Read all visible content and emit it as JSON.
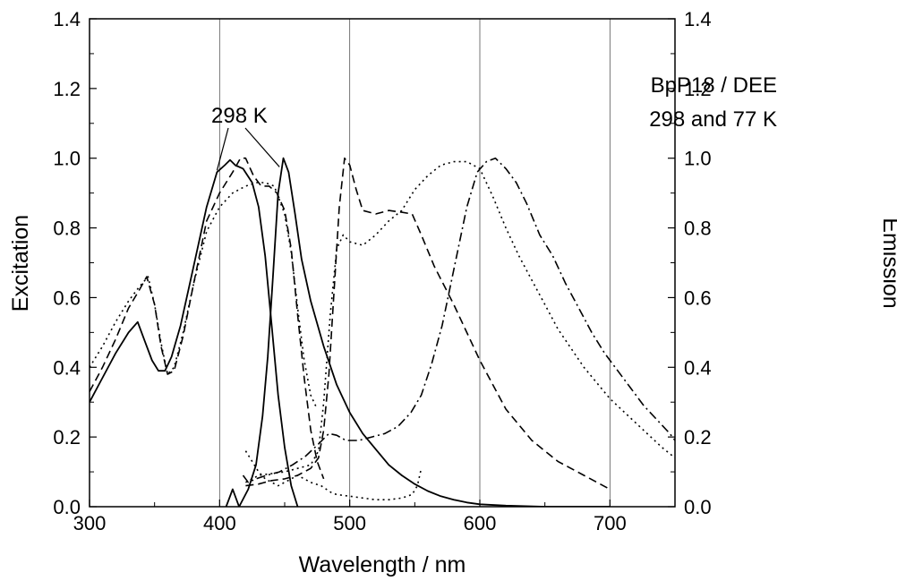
{
  "chart_data": {
    "type": "line",
    "xlabel": "Wavelength / nm",
    "ylabel_left": "Excitation",
    "ylabel_right": "Emission",
    "xlim": [
      300,
      750
    ],
    "ylim": [
      0.0,
      1.4
    ],
    "x_ticks": [
      "300",
      "400",
      "500",
      "600",
      "700"
    ],
    "y_ticks": [
      "0.0",
      "0.2",
      "0.4",
      "0.6",
      "0.8",
      "1.0",
      "1.2",
      "1.4"
    ],
    "grid": "vertical lines at 400, 500, 600, 700",
    "annotations": {
      "legend_line1": "BpP18 / DEE",
      "legend_line2": "298 and 77 K",
      "label_298": "298 K"
    },
    "series": [
      {
        "style": "solid",
        "points": [
          [
            300,
            0.3
          ],
          [
            310,
            0.37
          ],
          [
            320,
            0.44
          ],
          [
            330,
            0.5
          ],
          [
            337,
            0.53
          ],
          [
            342,
            0.48
          ],
          [
            348,
            0.42
          ],
          [
            353,
            0.39
          ],
          [
            358,
            0.39
          ],
          [
            363,
            0.43
          ],
          [
            370,
            0.52
          ],
          [
            380,
            0.69
          ],
          [
            390,
            0.86
          ],
          [
            398,
            0.96
          ],
          [
            404,
            0.98
          ],
          [
            408,
            0.995
          ],
          [
            412,
            0.98
          ],
          [
            418,
            0.97
          ],
          [
            425,
            0.93
          ],
          [
            430,
            0.86
          ],
          [
            435,
            0.72
          ],
          [
            440,
            0.52
          ],
          [
            445,
            0.32
          ],
          [
            450,
            0.17
          ],
          [
            455,
            0.06
          ],
          [
            460,
            0.0
          ]
        ]
      },
      {
        "style": "solid",
        "points": [
          [
            405,
            0.0
          ],
          [
            410,
            0.05
          ],
          [
            415,
            0.0
          ],
          [
            422,
            0.05
          ],
          [
            428,
            0.12
          ],
          [
            433,
            0.26
          ],
          [
            437,
            0.43
          ],
          [
            441,
            0.66
          ],
          [
            445,
            0.9
          ],
          [
            449,
            1.0
          ],
          [
            453,
            0.96
          ],
          [
            458,
            0.84
          ],
          [
            463,
            0.71
          ],
          [
            470,
            0.59
          ],
          [
            480,
            0.46
          ],
          [
            490,
            0.35
          ],
          [
            500,
            0.27
          ],
          [
            510,
            0.21
          ],
          [
            520,
            0.165
          ],
          [
            530,
            0.12
          ],
          [
            540,
            0.09
          ],
          [
            550,
            0.065
          ],
          [
            560,
            0.045
          ],
          [
            570,
            0.03
          ],
          [
            580,
            0.02
          ],
          [
            590,
            0.012
          ],
          [
            600,
            0.007
          ],
          [
            620,
            0.003
          ],
          [
            650,
            0.0
          ],
          [
            700,
            0.0
          ]
        ]
      },
      {
        "style": "dashed",
        "points": [
          [
            300,
            0.33
          ],
          [
            310,
            0.4
          ],
          [
            320,
            0.48
          ],
          [
            330,
            0.57
          ],
          [
            338,
            0.62
          ],
          [
            344,
            0.66
          ],
          [
            350,
            0.58
          ],
          [
            355,
            0.46
          ],
          [
            360,
            0.38
          ],
          [
            365,
            0.39
          ],
          [
            372,
            0.49
          ],
          [
            380,
            0.64
          ],
          [
            390,
            0.82
          ],
          [
            400,
            0.9
          ],
          [
            410,
            0.96
          ],
          [
            416,
            1.0
          ],
          [
            420,
            1.0
          ],
          [
            426,
            0.95
          ],
          [
            432,
            0.92
          ],
          [
            438,
            0.92
          ],
          [
            444,
            0.9
          ],
          [
            450,
            0.85
          ],
          [
            455,
            0.74
          ],
          [
            460,
            0.55
          ],
          [
            465,
            0.37
          ],
          [
            470,
            0.22
          ],
          [
            475,
            0.13
          ],
          [
            480,
            0.08
          ]
        ]
      },
      {
        "style": "dashed",
        "points": [
          [
            420,
            0.06
          ],
          [
            430,
            0.065
          ],
          [
            440,
            0.075
          ],
          [
            450,
            0.08
          ],
          [
            460,
            0.09
          ],
          [
            470,
            0.11
          ],
          [
            476,
            0.14
          ],
          [
            480,
            0.22
          ],
          [
            484,
            0.38
          ],
          [
            488,
            0.62
          ],
          [
            492,
            0.86
          ],
          [
            496,
            1.0
          ],
          [
            500,
            0.98
          ],
          [
            505,
            0.91
          ],
          [
            510,
            0.85
          ],
          [
            520,
            0.84
          ],
          [
            530,
            0.85
          ],
          [
            540,
            0.845
          ],
          [
            548,
            0.84
          ],
          [
            555,
            0.78
          ],
          [
            565,
            0.69
          ],
          [
            580,
            0.58
          ],
          [
            600,
            0.42
          ],
          [
            620,
            0.28
          ],
          [
            640,
            0.19
          ],
          [
            660,
            0.13
          ],
          [
            680,
            0.09
          ],
          [
            700,
            0.05
          ]
        ]
      },
      {
        "style": "dotted",
        "points": [
          [
            300,
            0.4
          ],
          [
            310,
            0.46
          ],
          [
            320,
            0.53
          ],
          [
            330,
            0.59
          ],
          [
            338,
            0.63
          ],
          [
            345,
            0.66
          ],
          [
            350,
            0.58
          ],
          [
            355,
            0.47
          ],
          [
            360,
            0.38
          ],
          [
            365,
            0.4
          ],
          [
            372,
            0.5
          ],
          [
            380,
            0.64
          ],
          [
            390,
            0.79
          ],
          [
            400,
            0.86
          ],
          [
            410,
            0.9
          ],
          [
            420,
            0.92
          ],
          [
            428,
            0.93
          ],
          [
            435,
            0.93
          ],
          [
            442,
            0.92
          ],
          [
            450,
            0.84
          ],
          [
            455,
            0.73
          ],
          [
            460,
            0.57
          ],
          [
            465,
            0.42
          ],
          [
            470,
            0.32
          ],
          [
            475,
            0.28
          ]
        ]
      },
      {
        "style": "dotted",
        "points": [
          [
            420,
            0.07
          ],
          [
            430,
            0.09
          ],
          [
            440,
            0.095
          ],
          [
            450,
            0.1
          ],
          [
            460,
            0.11
          ],
          [
            470,
            0.12
          ],
          [
            476,
            0.16
          ],
          [
            480,
            0.3
          ],
          [
            485,
            0.55
          ],
          [
            490,
            0.74
          ],
          [
            495,
            0.78
          ],
          [
            500,
            0.76
          ],
          [
            510,
            0.75
          ],
          [
            520,
            0.78
          ],
          [
            530,
            0.82
          ],
          [
            540,
            0.85
          ],
          [
            550,
            0.91
          ],
          [
            560,
            0.95
          ],
          [
            570,
            0.98
          ],
          [
            580,
            0.99
          ],
          [
            590,
            0.99
          ],
          [
            600,
            0.97
          ],
          [
            610,
            0.89
          ],
          [
            620,
            0.8
          ],
          [
            630,
            0.72
          ],
          [
            640,
            0.65
          ],
          [
            650,
            0.58
          ],
          [
            660,
            0.51
          ],
          [
            680,
            0.4
          ],
          [
            700,
            0.31
          ],
          [
            720,
            0.24
          ],
          [
            740,
            0.17
          ],
          [
            750,
            0.14
          ]
        ]
      },
      {
        "style": "dotted",
        "points": [
          [
            420,
            0.16
          ],
          [
            425,
            0.13
          ],
          [
            430,
            0.1
          ],
          [
            435,
            0.08
          ],
          [
            440,
            0.07
          ],
          [
            445,
            0.06
          ],
          [
            450,
            0.07
          ],
          [
            460,
            0.09
          ],
          [
            470,
            0.07
          ],
          [
            478,
            0.06
          ],
          [
            482,
            0.05
          ],
          [
            486,
            0.04
          ],
          [
            490,
            0.035
          ],
          [
            500,
            0.03
          ],
          [
            510,
            0.025
          ],
          [
            520,
            0.02
          ],
          [
            530,
            0.02
          ],
          [
            540,
            0.025
          ],
          [
            548,
            0.035
          ],
          [
            552,
            0.06
          ],
          [
            555,
            0.11
          ]
        ]
      },
      {
        "style": "dashdot",
        "points": [
          [
            418,
            0.09
          ],
          [
            422,
            0.07
          ],
          [
            428,
            0.08
          ],
          [
            436,
            0.09
          ],
          [
            446,
            0.1
          ],
          [
            456,
            0.12
          ],
          [
            466,
            0.145
          ],
          [
            476,
            0.18
          ],
          [
            484,
            0.21
          ],
          [
            490,
            0.205
          ],
          [
            497,
            0.19
          ],
          [
            507,
            0.19
          ],
          [
            517,
            0.2
          ],
          [
            527,
            0.21
          ],
          [
            537,
            0.23
          ],
          [
            547,
            0.27
          ],
          [
            555,
            0.32
          ],
          [
            563,
            0.41
          ],
          [
            571,
            0.52
          ],
          [
            580,
            0.68
          ],
          [
            590,
            0.86
          ],
          [
            598,
            0.96
          ],
          [
            605,
            0.99
          ],
          [
            612,
            1.0
          ],
          [
            620,
            0.97
          ],
          [
            628,
            0.93
          ],
          [
            636,
            0.87
          ],
          [
            646,
            0.78
          ],
          [
            656,
            0.72
          ],
          [
            666,
            0.64
          ],
          [
            676,
            0.57
          ],
          [
            686,
            0.5
          ],
          [
            696,
            0.44
          ],
          [
            706,
            0.39
          ],
          [
            716,
            0.34
          ],
          [
            726,
            0.29
          ],
          [
            736,
            0.25
          ],
          [
            746,
            0.21
          ],
          [
            750,
            0.19
          ]
        ]
      }
    ]
  }
}
